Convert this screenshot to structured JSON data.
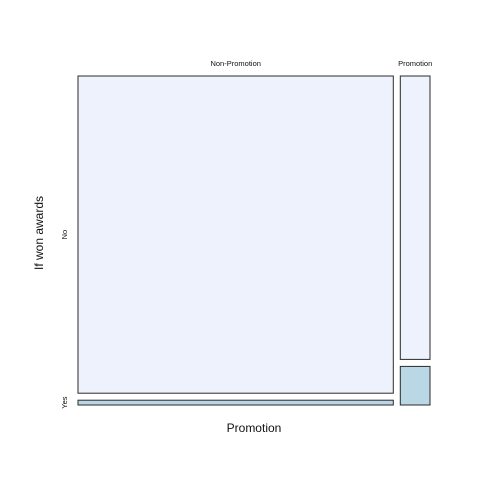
{
  "chart_data": {
    "type": "mosaic",
    "title": "",
    "xlabel": "Promotion",
    "ylabel": "If won awards",
    "x_categories": [
      "Non-Promotion",
      "Promotion"
    ],
    "y_categories": [
      "No",
      "Yes"
    ],
    "column_shares": [
      0.914,
      0.086
    ],
    "cells": [
      {
        "x": "Non-Promotion",
        "y": "No",
        "share_of_column": 0.985
      },
      {
        "x": "Non-Promotion",
        "y": "Yes",
        "share_of_column": 0.015
      },
      {
        "x": "Promotion",
        "y": "No",
        "share_of_column": 0.88
      },
      {
        "x": "Promotion",
        "y": "Yes",
        "share_of_column": 0.12
      }
    ],
    "fill_colors": {
      "No": "#eef2fd",
      "Yes": "#bad7e6"
    }
  }
}
